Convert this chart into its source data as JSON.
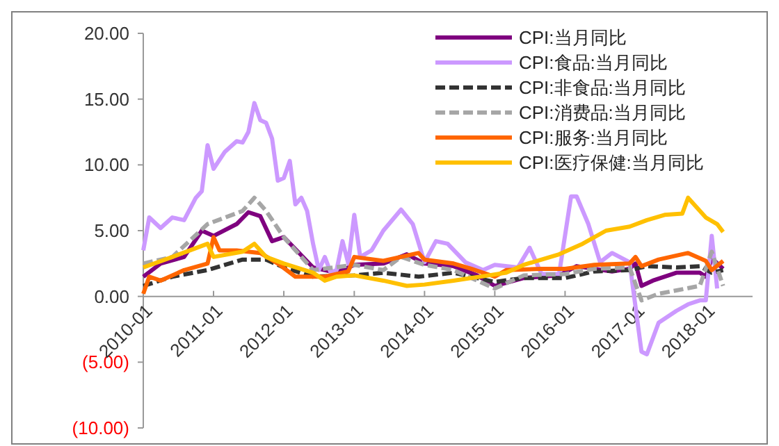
{
  "chart_data": {
    "type": "line",
    "line_style": "solid",
    "marker": "none",
    "legend": "top right",
    "grid": false,
    "xlim": [
      "2010-01",
      "2018-09"
    ],
    "xticks": [
      "2010-01",
      "2011-01",
      "2012-01",
      "2013-01",
      "2014-01",
      "2015-01",
      "2016-01",
      "2017-01",
      "2018-01"
    ],
    "ylim": [
      -10,
      20
    ],
    "yticks": [
      {
        "value": 20,
        "label": "20.00"
      },
      {
        "value": 15,
        "label": "15.00"
      },
      {
        "value": 10,
        "label": "10.00"
      },
      {
        "value": 5,
        "label": "5.00"
      },
      {
        "value": 0,
        "label": "0.00"
      },
      {
        "value": -5,
        "label": "(5.00)"
      },
      {
        "value": -10,
        "label": "(10.00)"
      }
    ],
    "series": [
      {
        "name": "CPI:当月同比",
        "color": "#7f007f",
        "x": [
          "2010-01",
          "2010-04",
          "2010-08",
          "2010-11",
          "2011-01",
          "2011-05",
          "2011-07",
          "2011-09",
          "2011-11",
          "2012-01",
          "2012-03",
          "2012-06",
          "2012-10",
          "2013-01",
          "2013-06",
          "2013-10",
          "2014-01",
          "2014-06",
          "2014-10",
          "2015-01",
          "2015-06",
          "2015-12",
          "2016-03",
          "2016-09",
          "2016-12",
          "2017-01",
          "2017-02",
          "2017-04",
          "2017-08",
          "2017-12",
          "2018-01",
          "2018-02",
          "2018-04"
        ],
        "values": [
          1.5,
          2.5,
          3,
          5,
          4.6,
          5.5,
          6.4,
          6.1,
          4.2,
          4.5,
          3.6,
          2.2,
          1.8,
          2.4,
          2.5,
          3.2,
          2.5,
          2.3,
          1.6,
          0.8,
          1.4,
          1.6,
          2.3,
          1.9,
          2.1,
          2.5,
          0.8,
          1.2,
          1.8,
          1.8,
          1.5,
          2.9,
          2.1
        ]
      },
      {
        "name": "CPI:食品:当月同比",
        "color": "#cc99ff",
        "x": [
          "2010-01",
          "2010-02",
          "2010-04",
          "2010-06",
          "2010-08",
          "2010-10",
          "2010-11",
          "2010-12",
          "2011-01",
          "2011-03",
          "2011-05",
          "2011-06",
          "2011-07",
          "2011-08",
          "2011-09",
          "2011-10",
          "2011-11",
          "2011-12",
          "2012-01",
          "2012-02",
          "2012-03",
          "2012-04",
          "2012-05",
          "2012-06",
          "2012-07",
          "2012-08",
          "2012-09",
          "2012-10",
          "2012-11",
          "2012-12",
          "2013-01",
          "2013-02",
          "2013-04",
          "2013-06",
          "2013-09",
          "2013-11",
          "2014-01",
          "2014-03",
          "2014-05",
          "2014-08",
          "2014-11",
          "2015-01",
          "2015-05",
          "2015-07",
          "2015-09",
          "2015-12",
          "2016-02",
          "2016-03",
          "2016-05",
          "2016-07",
          "2016-09",
          "2016-12",
          "2017-02",
          "2017-03",
          "2017-05",
          "2017-08",
          "2017-10",
          "2017-12",
          "2018-01",
          "2018-02",
          "2018-03"
        ],
        "values": [
          3.5,
          6,
          5.2,
          6,
          5.8,
          7.5,
          8,
          11.5,
          9.7,
          11,
          11.8,
          11.7,
          12.5,
          14.7,
          13.4,
          13.2,
          12,
          8.8,
          9,
          10.3,
          7,
          7.5,
          6.5,
          4,
          2,
          3,
          1.8,
          2,
          4.2,
          2.5,
          6.2,
          3,
          3.5,
          5,
          6.6,
          5.5,
          2.6,
          4.2,
          4,
          2.6,
          2,
          2.4,
          2.2,
          3.7,
          1.7,
          1.7,
          7.6,
          7.6,
          5.5,
          2.6,
          3.3,
          2.6,
          -4.2,
          -4.4,
          -2,
          -1.1,
          -0.6,
          -0.3,
          -0.3,
          4.6,
          0.6
        ]
      },
      {
        "name": "CPI:非食品:当月同比",
        "color": "#333333",
        "line_style": "dashed",
        "x": [
          "2010-01",
          "2010-06",
          "2010-12",
          "2011-06",
          "2011-10",
          "2012-01",
          "2012-06",
          "2013-01",
          "2013-06",
          "2013-12",
          "2014-06",
          "2015-01",
          "2015-06",
          "2016-01",
          "2016-06",
          "2016-12",
          "2017-03",
          "2017-08",
          "2017-12",
          "2018-02",
          "2018-04"
        ],
        "values": [
          0.8,
          1.5,
          2,
          2.8,
          2.8,
          2.2,
          1.5,
          1.6,
          1.8,
          1.5,
          1.8,
          1.1,
          1.4,
          1.4,
          1.9,
          2,
          2.3,
          2.2,
          2.3,
          1.8,
          2
        ]
      },
      {
        "name": "CPI:消费品:当月同比",
        "color": "#a6a6a6",
        "line_style": "dashed",
        "x": [
          "2010-01",
          "2010-06",
          "2010-12",
          "2011-06",
          "2011-08",
          "2011-10",
          "2012-01",
          "2012-06",
          "2013-01",
          "2013-06",
          "2013-09",
          "2014-01",
          "2014-06",
          "2015-01",
          "2015-06",
          "2016-01",
          "2016-06",
          "2016-12",
          "2017-02",
          "2017-05",
          "2017-12",
          "2018-02",
          "2018-04"
        ],
        "values": [
          2.5,
          3,
          5.5,
          6.5,
          7.5,
          6.5,
          4.5,
          2,
          2.4,
          2,
          3,
          2.4,
          2,
          0.6,
          1.6,
          1.7,
          2.1,
          2.2,
          -0.3,
          0.2,
          0.8,
          3.4,
          0.8
        ]
      },
      {
        "name": "CPI:服务:当月同比",
        "color": "#ff6600",
        "x": [
          "2010-01",
          "2010-02",
          "2010-04",
          "2010-08",
          "2010-12",
          "2011-01",
          "2011-02",
          "2011-05",
          "2011-09",
          "2011-12",
          "2012-03",
          "2012-08",
          "2012-12",
          "2013-01",
          "2013-06",
          "2013-12",
          "2014-01",
          "2014-06",
          "2014-09",
          "2015-01",
          "2015-03",
          "2015-09",
          "2016-01",
          "2016-06",
          "2016-12",
          "2017-01",
          "2017-02",
          "2017-05",
          "2017-10",
          "2018-01",
          "2018-02",
          "2018-04"
        ],
        "values": [
          0.2,
          1.5,
          1.2,
          2,
          2.5,
          4.5,
          3.5,
          3.5,
          3.3,
          2.5,
          1.5,
          1.5,
          1.9,
          3,
          2.7,
          3.3,
          2.8,
          2.5,
          2.1,
          1.5,
          2,
          2.1,
          2.1,
          2.4,
          2.5,
          3,
          2.3,
          2.8,
          3.3,
          2.7,
          2,
          2.7
        ]
      },
      {
        "name": "CPI:医疗保健:当月同比",
        "color": "#ffc000",
        "x": [
          "2010-01",
          "2010-06",
          "2010-12",
          "2011-01",
          "2011-06",
          "2011-08",
          "2011-10",
          "2012-01",
          "2012-06",
          "2012-08",
          "2012-10",
          "2013-01",
          "2013-06",
          "2013-10",
          "2014-01",
          "2014-06",
          "2014-12",
          "2015-03",
          "2015-06",
          "2015-12",
          "2016-04",
          "2016-08",
          "2016-12",
          "2017-03",
          "2017-06",
          "2017-09",
          "2017-10",
          "2018-01",
          "2018-03",
          "2018-04"
        ],
        "values": [
          2.2,
          3,
          4,
          3,
          3.4,
          4,
          3,
          2.5,
          1.8,
          1.2,
          1.5,
          1.6,
          1.2,
          0.8,
          0.9,
          1.2,
          1.6,
          1.8,
          2.4,
          3.2,
          4,
          5,
          5.3,
          5.8,
          6.2,
          6.3,
          7.5,
          6,
          5.5,
          4.9
        ]
      }
    ]
  }
}
